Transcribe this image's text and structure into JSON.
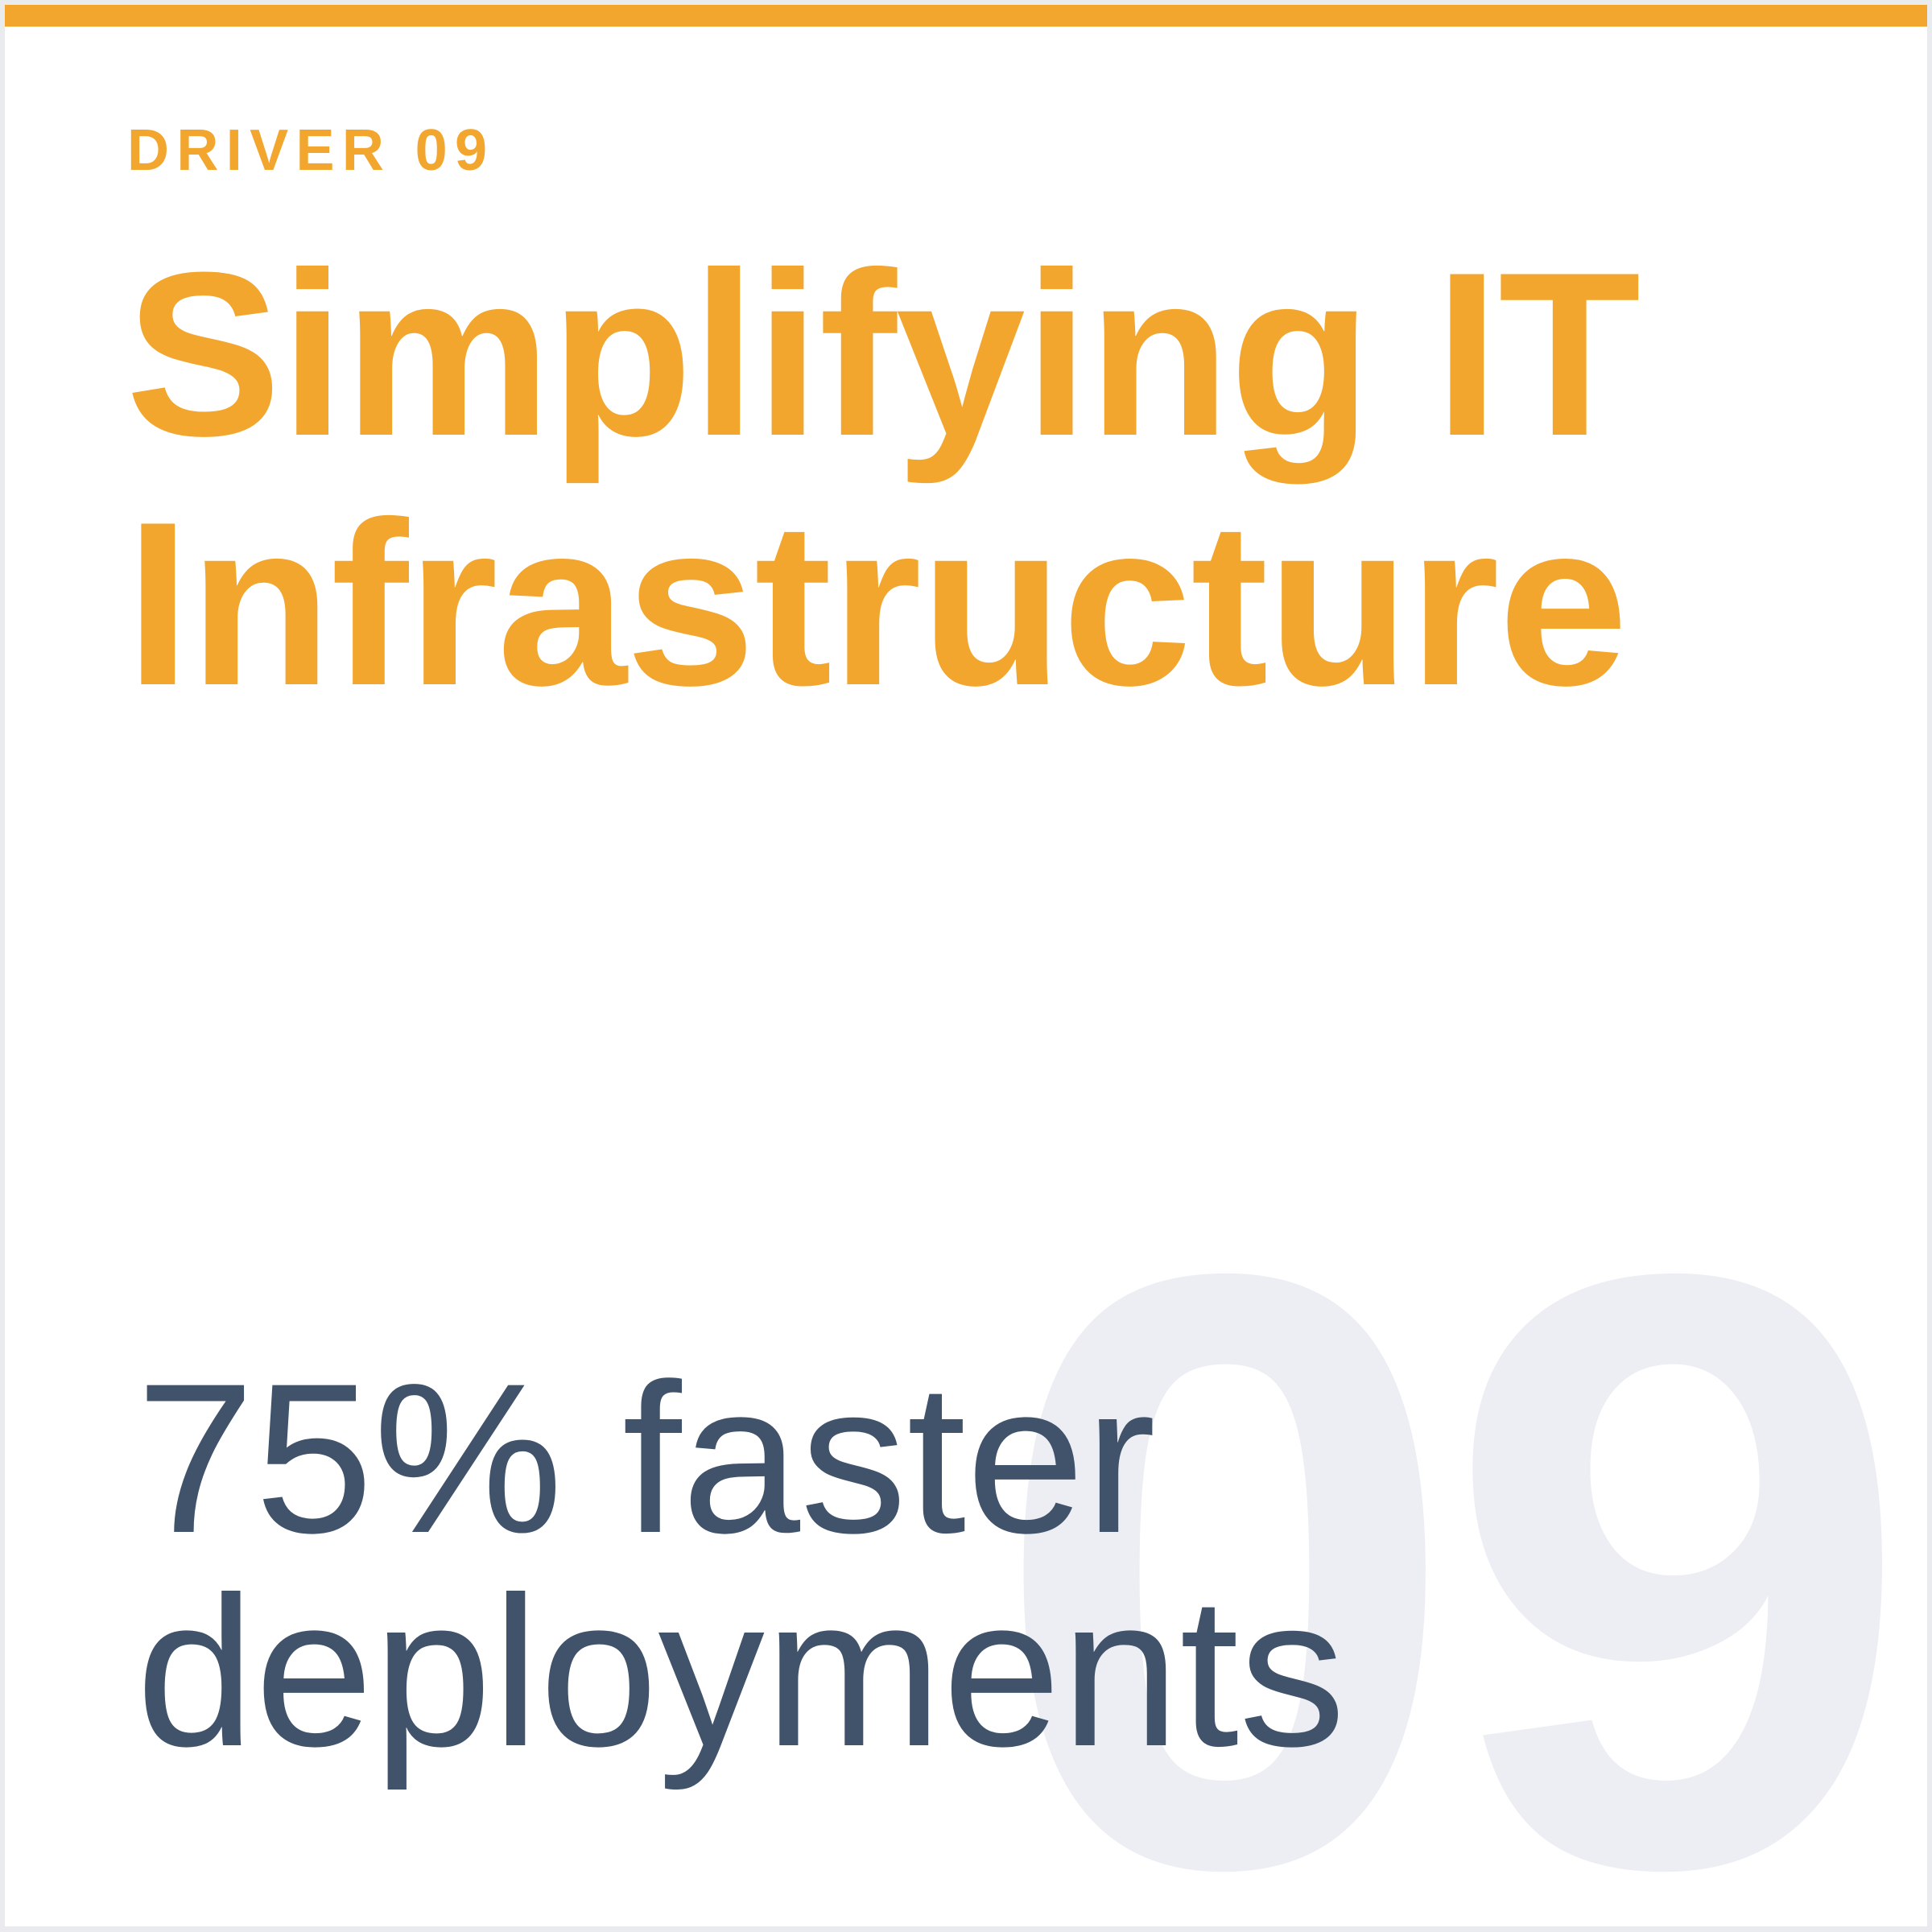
{
  "page": {
    "eyebrow": "DRIVER 09",
    "title_line1": "Simplifying IT",
    "title_line2": "Infrastructure",
    "stat_line1": "75% faster",
    "stat_line2": "deployments",
    "watermark_number": "09"
  },
  "colors": {
    "accent_orange": "#F2A62E",
    "stat_slate": "#40536B",
    "watermark_gray": "#ECEEF3",
    "frame_gray": "#E9EBEF"
  }
}
